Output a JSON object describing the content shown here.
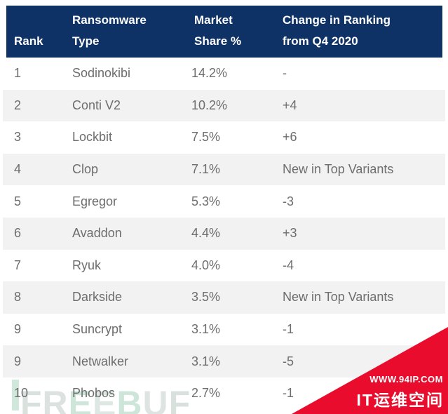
{
  "chart_data": {
    "type": "table",
    "title": "Ransomware market share ranking table",
    "columns": [
      "Rank",
      "Ransomware Type",
      "Market Share %",
      "Change in Ranking from Q4 2020"
    ],
    "rows": [
      [
        "1",
        "Sodinokibi",
        "14.2%",
        "-"
      ],
      [
        "2",
        "Conti V2",
        "10.2%",
        "+4"
      ],
      [
        "3",
        "Lockbit",
        "7.5%",
        "+6"
      ],
      [
        "4",
        "Clop",
        "7.1%",
        "New in Top Variants"
      ],
      [
        "5",
        "Egregor",
        "5.3%",
        "-3"
      ],
      [
        "6",
        "Avaddon",
        "4.4%",
        "+3"
      ],
      [
        "7",
        "Ryuk",
        "4.0%",
        "-4"
      ],
      [
        "8",
        "Darkside",
        "3.5%",
        "New in Top Variants"
      ],
      [
        "9",
        "Suncrypt",
        "3.1%",
        "-1"
      ],
      [
        "9",
        "Netwalker",
        "3.1%",
        "-5"
      ],
      [
        "10",
        "Phobos",
        "2.7%",
        "-1"
      ]
    ]
  },
  "table": {
    "header": {
      "columns": [
        {
          "line1": "",
          "line2": "Rank"
        },
        {
          "line1": "Ransomware",
          "line2": "Type"
        },
        {
          "line1": "Market",
          "line2": "Share %"
        },
        {
          "line1": "Change in Ranking",
          "line2": "from Q4 2020"
        }
      ]
    },
    "rows": [
      {
        "rank": "1",
        "type": "Sodinokibi",
        "share": "14.2%",
        "change": "-"
      },
      {
        "rank": "2",
        "type": "Conti V2",
        "share": "10.2%",
        "change": "+4"
      },
      {
        "rank": "3",
        "type": "Lockbit",
        "share": "7.5%",
        "change": "+6"
      },
      {
        "rank": "4",
        "type": "Clop",
        "share": "7.1%",
        "change": "New in Top Variants"
      },
      {
        "rank": "5",
        "type": "Egregor",
        "share": "5.3%",
        "change": "-3"
      },
      {
        "rank": "6",
        "type": "Avaddon",
        "share": "4.4%",
        "change": "+3"
      },
      {
        "rank": "7",
        "type": "Ryuk",
        "share": "4.0%",
        "change": "-4"
      },
      {
        "rank": "8",
        "type": "Darkside",
        "share": "3.5%",
        "change": "New in Top Variants"
      },
      {
        "rank": "9",
        "type": "Suncrypt",
        "share": "3.1%",
        "change": "-1"
      },
      {
        "rank": "9",
        "type": "Netwalker",
        "share": "3.1%",
        "change": "-5"
      },
      {
        "rank": "10",
        "type": "Phobos",
        "share": "2.7%",
        "change": "-1"
      }
    ]
  },
  "watermarks": {
    "freebuf": {
      "letters": [
        "F",
        "R",
        "E",
        "E",
        "B",
        "U",
        "F"
      ],
      "letter_colors": [
        "#d3dcd8",
        "#d6ddda",
        "#c6e1d3",
        "#d9e4de",
        "#c6e1d3",
        "#d8e0dc",
        "#d3dcd8"
      ],
      "bar_color": "#aad4c0"
    },
    "corner": {
      "site": "WWW.94IP.COM",
      "name": "IT运维空间",
      "color": "#ea0c2c"
    }
  },
  "colors": {
    "header_bg": "#0e3266",
    "header_text": "#ffffff",
    "stripe": "#f2f2f2",
    "body_text": "#6d6d6d"
  }
}
